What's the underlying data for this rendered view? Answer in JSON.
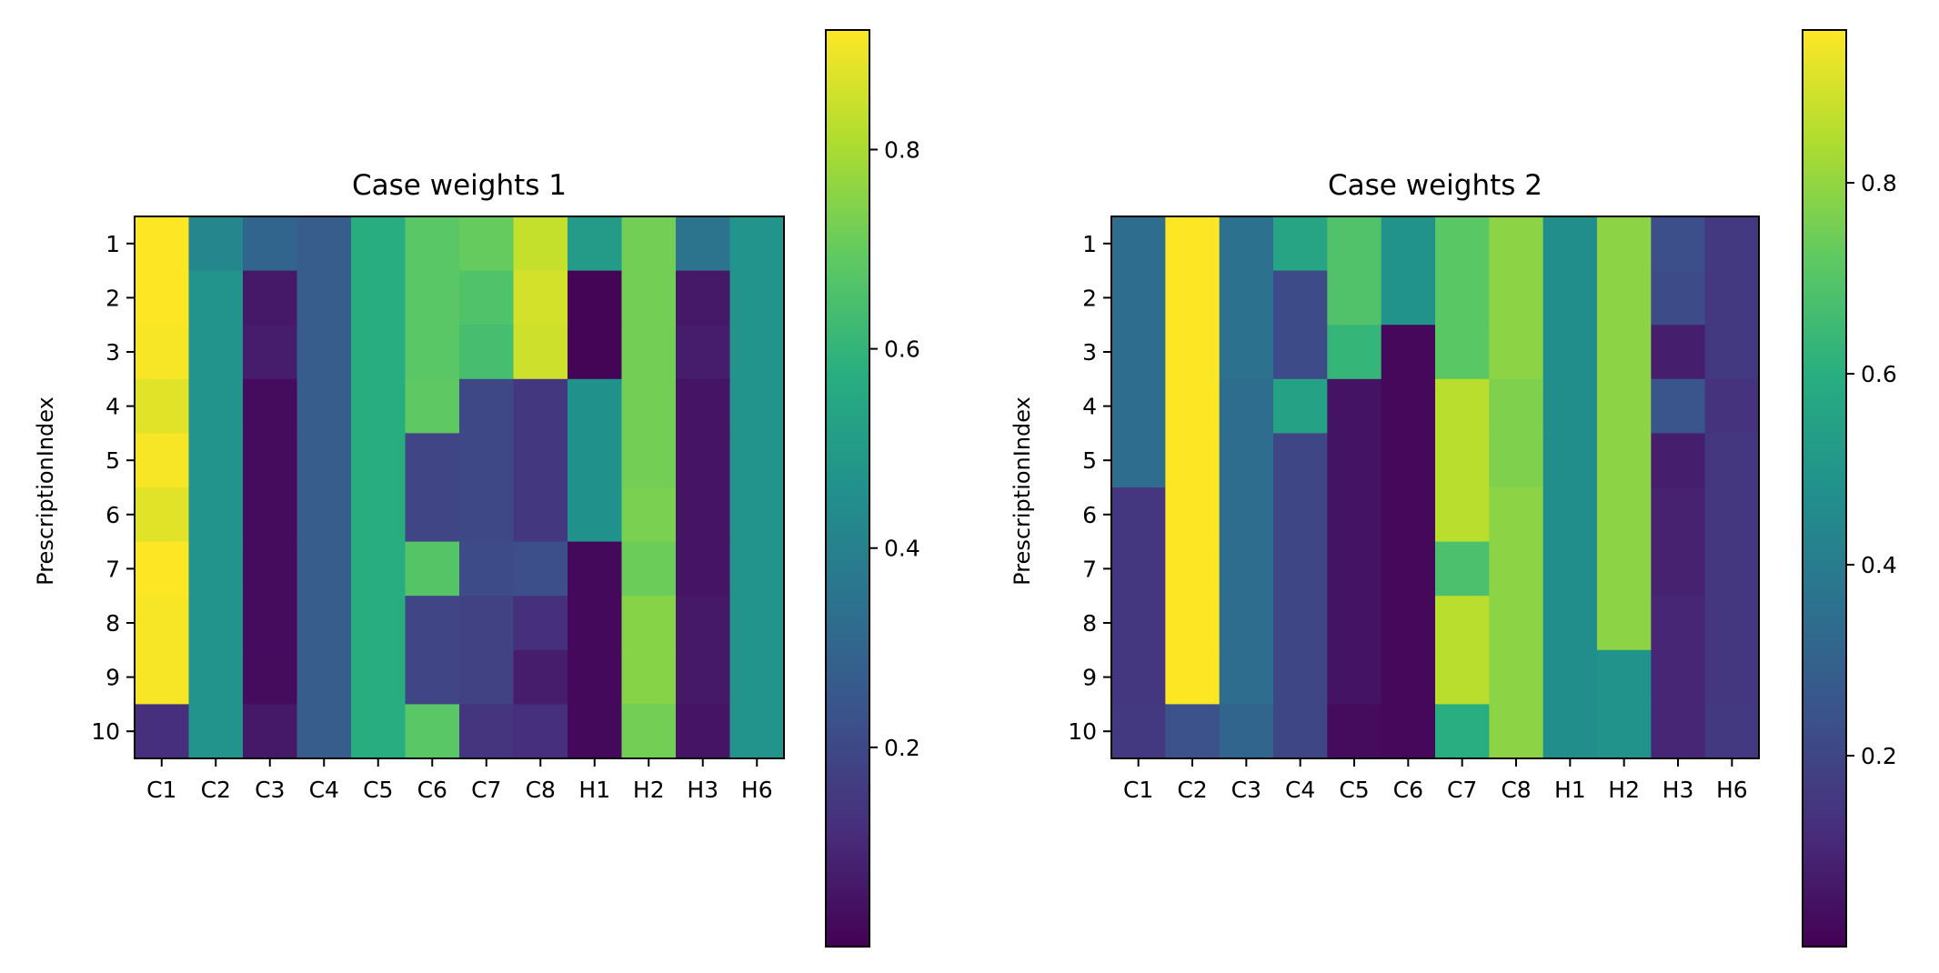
{
  "chart_data": [
    {
      "type": "heatmap",
      "title": "Case weights 1",
      "xlabel": "",
      "ylabel": "PrescriptionIndex",
      "colormap": "viridis",
      "x_categories": [
        "C1",
        "C2",
        "C3",
        "C4",
        "C5",
        "C6",
        "C7",
        "C8",
        "H1",
        "H2",
        "H3",
        "H6"
      ],
      "y_categories": [
        "1",
        "2",
        "3",
        "4",
        "5",
        "6",
        "7",
        "8",
        "9",
        "10"
      ],
      "values": [
        [
          0.92,
          0.42,
          0.3,
          0.27,
          0.57,
          0.68,
          0.7,
          0.84,
          0.5,
          0.72,
          0.35,
          0.47
        ],
        [
          0.92,
          0.47,
          0.06,
          0.27,
          0.57,
          0.68,
          0.66,
          0.86,
          0.01,
          0.72,
          0.06,
          0.47
        ],
        [
          0.91,
          0.47,
          0.07,
          0.27,
          0.57,
          0.68,
          0.64,
          0.85,
          0.01,
          0.72,
          0.07,
          0.47
        ],
        [
          0.88,
          0.47,
          0.03,
          0.27,
          0.57,
          0.69,
          0.2,
          0.15,
          0.46,
          0.72,
          0.05,
          0.47
        ],
        [
          0.91,
          0.47,
          0.03,
          0.27,
          0.57,
          0.19,
          0.2,
          0.15,
          0.46,
          0.72,
          0.05,
          0.47
        ],
        [
          0.88,
          0.47,
          0.03,
          0.27,
          0.57,
          0.19,
          0.2,
          0.15,
          0.46,
          0.73,
          0.05,
          0.47
        ],
        [
          0.92,
          0.47,
          0.03,
          0.27,
          0.57,
          0.67,
          0.21,
          0.22,
          0.02,
          0.71,
          0.05,
          0.47
        ],
        [
          0.91,
          0.47,
          0.03,
          0.27,
          0.57,
          0.19,
          0.18,
          0.12,
          0.02,
          0.75,
          0.06,
          0.47
        ],
        [
          0.91,
          0.47,
          0.03,
          0.27,
          0.57,
          0.19,
          0.18,
          0.07,
          0.02,
          0.75,
          0.06,
          0.47
        ],
        [
          0.12,
          0.47,
          0.06,
          0.27,
          0.57,
          0.68,
          0.14,
          0.12,
          0.02,
          0.72,
          0.05,
          0.47
        ]
      ],
      "vmin": 0.0,
      "vmax": 0.92,
      "colorbar_ticks": [
        "0.2",
        "0.4",
        "0.6",
        "0.8"
      ]
    },
    {
      "type": "heatmap",
      "title": "Case weights 2",
      "xlabel": "",
      "ylabel": "PrescriptionIndex",
      "colormap": "viridis",
      "x_categories": [
        "C1",
        "C2",
        "C3",
        "C4",
        "C5",
        "C6",
        "C7",
        "C8",
        "H1",
        "H2",
        "H3",
        "H6"
      ],
      "y_categories": [
        "1",
        "2",
        "3",
        "4",
        "5",
        "6",
        "7",
        "8",
        "9",
        "10"
      ],
      "values": [
        [
          0.34,
          0.96,
          0.36,
          0.56,
          0.69,
          0.49,
          0.71,
          0.79,
          0.47,
          0.79,
          0.23,
          0.16
        ],
        [
          0.34,
          0.96,
          0.36,
          0.22,
          0.69,
          0.49,
          0.71,
          0.79,
          0.47,
          0.79,
          0.22,
          0.16
        ],
        [
          0.34,
          0.96,
          0.36,
          0.22,
          0.63,
          0.02,
          0.71,
          0.79,
          0.47,
          0.79,
          0.08,
          0.16
        ],
        [
          0.34,
          0.96,
          0.34,
          0.55,
          0.05,
          0.02,
          0.86,
          0.77,
          0.47,
          0.79,
          0.25,
          0.14
        ],
        [
          0.34,
          0.96,
          0.34,
          0.2,
          0.05,
          0.02,
          0.86,
          0.77,
          0.47,
          0.79,
          0.08,
          0.15
        ],
        [
          0.15,
          0.96,
          0.34,
          0.2,
          0.05,
          0.02,
          0.86,
          0.79,
          0.47,
          0.79,
          0.09,
          0.15
        ],
        [
          0.15,
          0.96,
          0.34,
          0.2,
          0.05,
          0.02,
          0.68,
          0.79,
          0.47,
          0.79,
          0.09,
          0.15
        ],
        [
          0.15,
          0.96,
          0.34,
          0.2,
          0.05,
          0.02,
          0.86,
          0.79,
          0.47,
          0.79,
          0.1,
          0.15
        ],
        [
          0.15,
          0.96,
          0.34,
          0.2,
          0.05,
          0.02,
          0.86,
          0.79,
          0.47,
          0.49,
          0.1,
          0.15
        ],
        [
          0.16,
          0.24,
          0.31,
          0.2,
          0.03,
          0.02,
          0.6,
          0.79,
          0.47,
          0.49,
          0.1,
          0.16
        ]
      ],
      "vmin": 0.0,
      "vmax": 0.96,
      "colorbar_ticks": [
        "0.2",
        "0.4",
        "0.6",
        "0.8"
      ]
    }
  ]
}
